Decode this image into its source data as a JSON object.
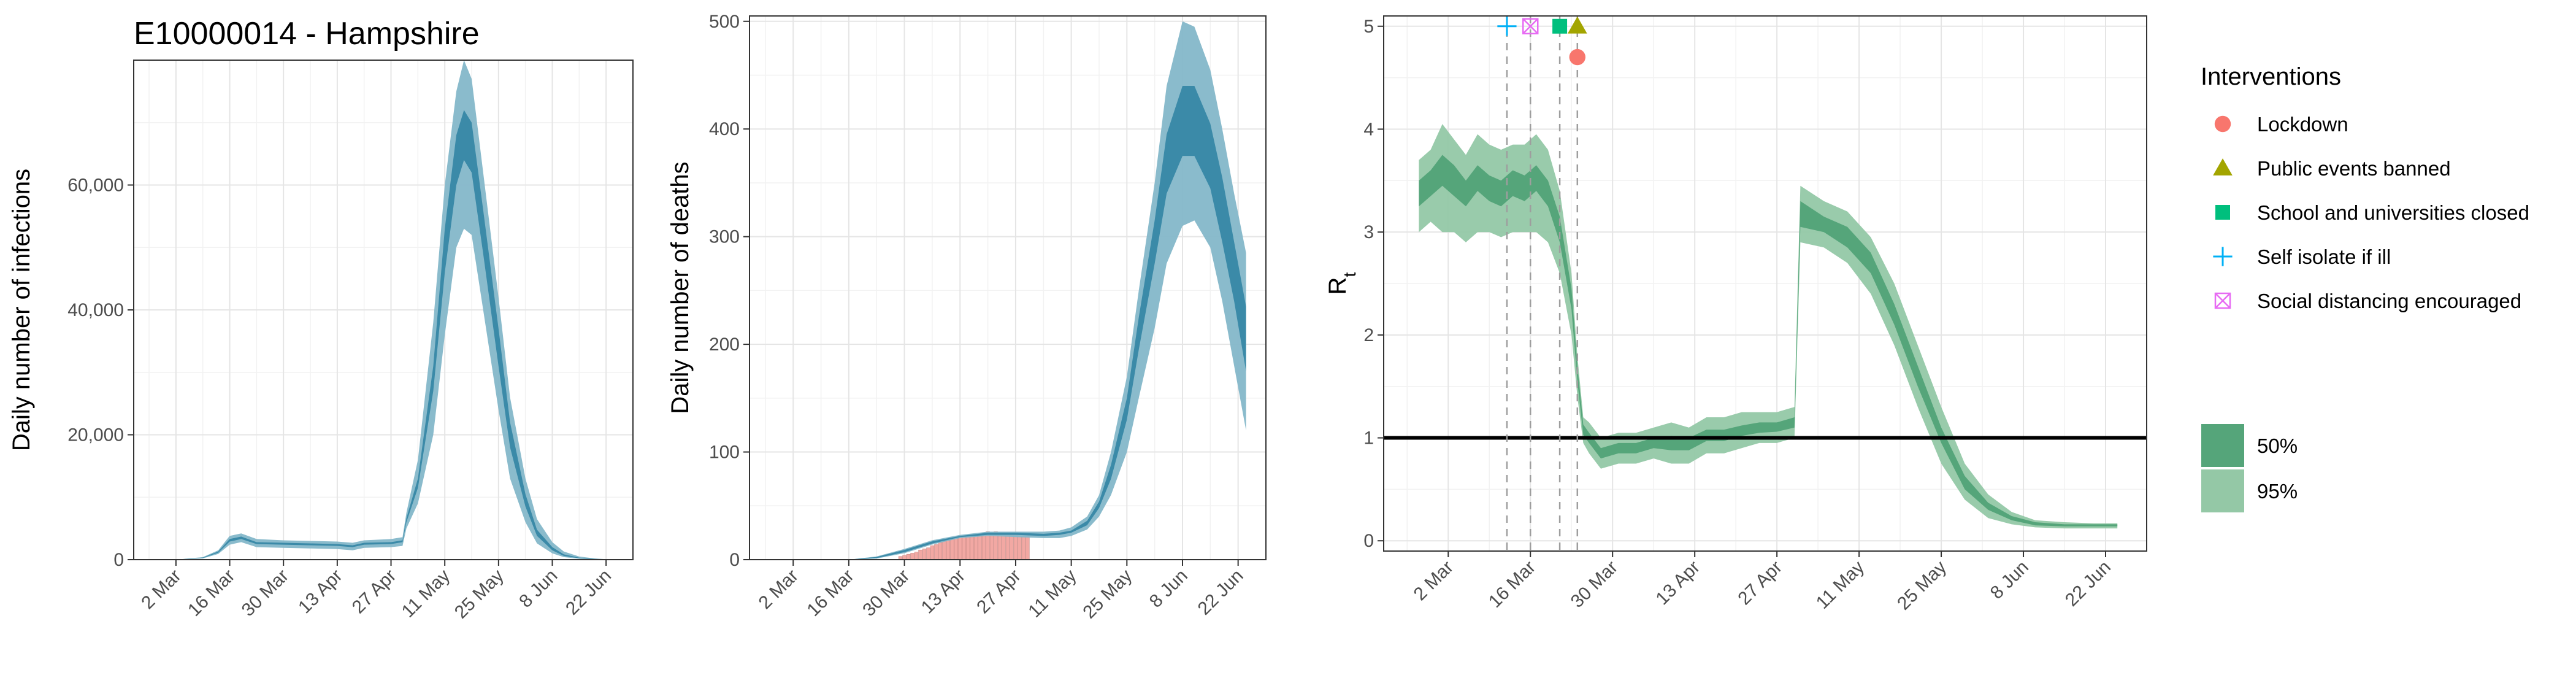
{
  "colors": {
    "infection_95": "#84b7c9",
    "infection_50": "#3b8aa8",
    "rt_95": "#94c8a6",
    "rt_50": "#55a57a",
    "deaths_bar": "#f2a8a3",
    "lockdown": "#f8766d",
    "public_events": "#a3a500",
    "school": "#00bf7d",
    "self_isolate": "#00b0f6",
    "social_distancing": "#e76bf3",
    "grid_major": "#e5e5e5",
    "grid_minor": "#f2f2f2"
  },
  "chart_data": [
    {
      "type": "area",
      "title": "E10000014 - Hampshire",
      "xlabel": "",
      "ylabel": "Daily number of infections",
      "x_ticks": [
        "2 Mar",
        "16 Mar",
        "30 Mar",
        "13 Apr",
        "27 Apr",
        "11 May",
        "25 May",
        "8 Jun",
        "22 Jun"
      ],
      "y_ticks": [
        "0",
        "20,000",
        "40,000",
        "60,000"
      ],
      "y_tick_values": [
        0,
        20000,
        40000,
        60000
      ],
      "xlim": [
        "2020-02-20",
        "2020-06-29"
      ],
      "ylim": [
        0,
        80000
      ],
      "grid": true,
      "x": [
        "2020-03-02",
        "2020-03-09",
        "2020-03-13",
        "2020-03-16",
        "2020-03-19",
        "2020-03-23",
        "2020-03-30",
        "2020-04-06",
        "2020-04-13",
        "2020-04-17",
        "2020-04-20",
        "2020-04-27",
        "2020-04-30",
        "2020-05-01",
        "2020-05-04",
        "2020-05-08",
        "2020-05-11",
        "2020-05-14",
        "2020-05-16",
        "2020-05-18",
        "2020-05-21",
        "2020-05-25",
        "2020-05-28",
        "2020-06-01",
        "2020-06-04",
        "2020-06-08",
        "2020-06-11",
        "2020-06-15",
        "2020-06-19",
        "2020-06-22",
        "2020-06-25"
      ],
      "series": [
        {
          "name": "95%",
          "low": [
            0,
            200,
            900,
            2400,
            2800,
            2000,
            1900,
            1800,
            1700,
            1500,
            1900,
            2000,
            2200,
            5000,
            9000,
            20000,
            36000,
            50000,
            53000,
            52000,
            40000,
            24000,
            13000,
            6000,
            2600,
            1000,
            400,
            150,
            50,
            20,
            5
          ],
          "high": [
            0,
            400,
            1500,
            3800,
            4200,
            3300,
            3100,
            3000,
            2900,
            2700,
            3100,
            3300,
            3600,
            7500,
            16000,
            38000,
            60000,
            75000,
            80000,
            77000,
            62000,
            42000,
            26000,
            13000,
            6500,
            2800,
            1300,
            500,
            200,
            80,
            20
          ]
        },
        {
          "name": "50%",
          "low": [
            0,
            270,
            1100,
            2900,
            3300,
            2500,
            2400,
            2300,
            2200,
            2000,
            2400,
            2500,
            2800,
            6000,
            11500,
            27000,
            46000,
            60000,
            64000,
            62000,
            49000,
            31000,
            18000,
            8500,
            3800,
            1500,
            600,
            220,
            80,
            30,
            8
          ],
          "high": [
            0,
            330,
            1300,
            3300,
            3700,
            2800,
            2700,
            2600,
            2500,
            2300,
            2700,
            2800,
            3100,
            6600,
            13000,
            31000,
            53000,
            68000,
            72000,
            70000,
            56000,
            37000,
            22000,
            10500,
            4800,
            2000,
            850,
            320,
            120,
            45,
            12
          ]
        }
      ]
    },
    {
      "type": "area",
      "title": "",
      "xlabel": "",
      "ylabel": "Daily number of deaths",
      "x_ticks": [
        "2 Mar",
        "16 Mar",
        "30 Mar",
        "13 Apr",
        "27 Apr",
        "11 May",
        "25 May",
        "8 Jun",
        "22 Jun"
      ],
      "y_ticks": [
        "0",
        "100",
        "200",
        "300",
        "400",
        "500"
      ],
      "y_tick_values": [
        0,
        100,
        200,
        300,
        400,
        500
      ],
      "xlim": [
        "2020-02-20",
        "2020-06-29"
      ],
      "ylim": [
        0,
        505
      ],
      "grid": true,
      "x": [
        "2020-03-16",
        "2020-03-23",
        "2020-03-30",
        "2020-04-06",
        "2020-04-13",
        "2020-04-20",
        "2020-04-27",
        "2020-05-04",
        "2020-05-08",
        "2020-05-11",
        "2020-05-15",
        "2020-05-18",
        "2020-05-21",
        "2020-05-25",
        "2020-05-28",
        "2020-06-01",
        "2020-06-04",
        "2020-06-08",
        "2020-06-11",
        "2020-06-15",
        "2020-06-18",
        "2020-06-21",
        "2020-06-24"
      ],
      "series": [
        {
          "name": "95%",
          "low": [
            0,
            1,
            6,
            14,
            20,
            22,
            21,
            20,
            20,
            22,
            28,
            40,
            60,
            100,
            150,
            215,
            275,
            310,
            315,
            290,
            240,
            180,
            120
          ],
          "high": [
            0,
            3,
            10,
            18,
            23,
            26,
            26,
            26,
            27,
            30,
            40,
            60,
            100,
            170,
            250,
            350,
            440,
            500,
            495,
            455,
            400,
            340,
            285
          ]
        },
        {
          "name": "50%",
          "low": [
            0,
            1.5,
            7,
            15,
            21,
            23,
            23,
            22,
            23,
            25,
            32,
            48,
            75,
            130,
            195,
            275,
            340,
            375,
            375,
            345,
            295,
            240,
            175
          ],
          "high": [
            0,
            2.5,
            9,
            17,
            22,
            25,
            25,
            24,
            25,
            27,
            36,
            54,
            88,
            150,
            225,
            315,
            395,
            440,
            440,
            405,
            355,
            295,
            235
          ]
        }
      ],
      "observed_deaths": {
        "x": [
          "2020-03-29",
          "2020-03-30",
          "2020-03-31",
          "2020-04-01",
          "2020-04-02",
          "2020-04-03",
          "2020-04-04",
          "2020-04-05",
          "2020-04-06",
          "2020-04-07",
          "2020-04-08",
          "2020-04-09",
          "2020-04-10",
          "2020-04-11",
          "2020-04-12",
          "2020-04-13",
          "2020-04-14",
          "2020-04-15",
          "2020-04-16",
          "2020-04-17",
          "2020-04-18",
          "2020-04-19",
          "2020-04-20",
          "2020-04-21",
          "2020-04-22",
          "2020-04-23",
          "2020-04-24",
          "2020-04-25",
          "2020-04-26",
          "2020-04-27",
          "2020-04-28",
          "2020-04-29",
          "2020-04-30"
        ],
        "values": [
          3,
          4,
          5,
          6,
          7,
          9,
          10,
          11,
          13,
          14,
          16,
          17,
          18,
          19,
          20,
          21,
          22,
          21,
          22,
          23,
          24,
          25,
          26,
          25,
          26,
          25,
          24,
          24,
          23,
          23,
          22,
          22,
          22
        ]
      }
    },
    {
      "type": "area",
      "title": "",
      "xlabel": "",
      "ylabel": "R",
      "ylabel_sub": "t",
      "x_ticks": [
        "2 Mar",
        "16 Mar",
        "30 Mar",
        "13 Apr",
        "27 Apr",
        "11 May",
        "25 May",
        "8 Jun",
        "22 Jun"
      ],
      "y_ticks": [
        "0",
        "1",
        "2",
        "3",
        "4",
        "5"
      ],
      "y_tick_values": [
        0,
        1,
        2,
        3,
        4,
        5
      ],
      "xlim": [
        "2020-02-20",
        "2020-06-29"
      ],
      "ylim": [
        -0.1,
        5.1
      ],
      "grid": true,
      "reference_line": 1,
      "x": [
        "2020-02-26",
        "2020-02-28",
        "2020-03-01",
        "2020-03-03",
        "2020-03-05",
        "2020-03-07",
        "2020-03-09",
        "2020-03-11",
        "2020-03-13",
        "2020-03-15",
        "2020-03-17",
        "2020-03-19",
        "2020-03-21",
        "2020-03-23",
        "2020-03-24",
        "2020-03-25",
        "2020-03-26",
        "2020-03-28",
        "2020-03-31",
        "2020-04-03",
        "2020-04-06",
        "2020-04-09",
        "2020-04-12",
        "2020-04-15",
        "2020-04-18",
        "2020-04-21",
        "2020-04-24",
        "2020-04-27",
        "2020-04-30",
        "2020-05-01",
        "2020-05-05",
        "2020-05-09",
        "2020-05-13",
        "2020-05-17",
        "2020-05-21",
        "2020-05-25",
        "2020-05-29",
        "2020-06-02",
        "2020-06-06",
        "2020-06-10",
        "2020-06-15",
        "2020-06-20",
        "2020-06-24"
      ],
      "series": [
        {
          "name": "95%",
          "low": [
            3.0,
            3.1,
            3.0,
            3.0,
            2.9,
            3.0,
            3.0,
            2.95,
            3.0,
            3.0,
            3.0,
            2.9,
            2.6,
            2.0,
            1.4,
            0.95,
            0.85,
            0.7,
            0.75,
            0.75,
            0.8,
            0.75,
            0.75,
            0.85,
            0.85,
            0.9,
            0.95,
            0.95,
            1.0,
            2.9,
            2.85,
            2.7,
            2.4,
            1.9,
            1.3,
            0.75,
            0.4,
            0.22,
            0.16,
            0.13,
            0.12,
            0.12,
            0.12
          ],
          "high": [
            3.7,
            3.8,
            4.05,
            3.9,
            3.75,
            3.95,
            3.85,
            3.8,
            3.85,
            3.85,
            3.95,
            3.8,
            3.4,
            2.6,
            1.8,
            1.2,
            1.15,
            1.0,
            1.05,
            1.05,
            1.1,
            1.15,
            1.1,
            1.2,
            1.2,
            1.25,
            1.25,
            1.25,
            1.3,
            3.45,
            3.3,
            3.2,
            2.95,
            2.5,
            1.9,
            1.3,
            0.75,
            0.45,
            0.28,
            0.2,
            0.18,
            0.17,
            0.17
          ]
        },
        {
          "name": "50%",
          "low": [
            3.25,
            3.35,
            3.45,
            3.35,
            3.25,
            3.4,
            3.3,
            3.25,
            3.35,
            3.3,
            3.4,
            3.25,
            2.9,
            2.25,
            1.55,
            1.03,
            0.95,
            0.8,
            0.85,
            0.85,
            0.9,
            0.88,
            0.88,
            0.97,
            0.97,
            1.02,
            1.05,
            1.06,
            1.1,
            3.05,
            3.0,
            2.85,
            2.6,
            2.1,
            1.5,
            0.95,
            0.5,
            0.3,
            0.2,
            0.15,
            0.14,
            0.14,
            0.14
          ],
          "high": [
            3.5,
            3.6,
            3.75,
            3.65,
            3.5,
            3.65,
            3.55,
            3.5,
            3.6,
            3.55,
            3.65,
            3.5,
            3.15,
            2.45,
            1.7,
            1.13,
            1.05,
            0.9,
            0.95,
            0.95,
            1.0,
            1.02,
            1.0,
            1.08,
            1.08,
            1.12,
            1.15,
            1.15,
            1.2,
            3.3,
            3.15,
            3.05,
            2.8,
            2.3,
            1.7,
            1.1,
            0.63,
            0.37,
            0.24,
            0.18,
            0.16,
            0.16,
            0.16
          ]
        }
      ],
      "interventions": [
        {
          "name": "Self isolate if ill",
          "date": "2020-03-12",
          "marker": "plus",
          "y": 5.0
        },
        {
          "name": "Social distancing encouraged",
          "date": "2020-03-16",
          "marker": "square-x",
          "y": 5.0
        },
        {
          "name": "School and universities closed",
          "date": "2020-03-21",
          "marker": "square",
          "y": 5.0
        },
        {
          "name": "Public events banned",
          "date": "2020-03-24",
          "marker": "triangle",
          "y": 5.0
        },
        {
          "name": "Lockdown",
          "date": "2020-03-24",
          "marker": "circle",
          "y": 4.7
        }
      ]
    }
  ],
  "legend": {
    "interventions_title": "Interventions",
    "interventions": [
      {
        "label": "Lockdown",
        "marker": "circle",
        "color": "#f8766d"
      },
      {
        "label": "Public events banned",
        "marker": "triangle",
        "color": "#a3a500"
      },
      {
        "label": "School and universities closed",
        "marker": "square",
        "color": "#00bf7d"
      },
      {
        "label": "Self isolate if ill",
        "marker": "plus",
        "color": "#00b0f6"
      },
      {
        "label": "Social distancing encouraged",
        "marker": "square-x",
        "color": "#e76bf3"
      }
    ],
    "intervals": [
      {
        "label": "50%",
        "color": "#55a57a"
      },
      {
        "label": "95%",
        "color": "#94c8a6"
      }
    ]
  }
}
